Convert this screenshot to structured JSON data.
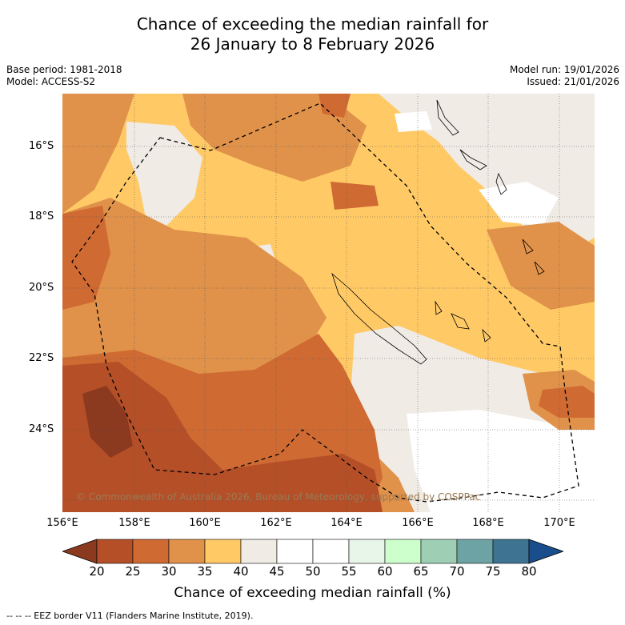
{
  "title": {
    "line1": "Chance of exceeding the median rainfall for",
    "line2": "26 January to 8 February 2026"
  },
  "meta": {
    "base_period": "Base period: 1981-2018",
    "model": "Model: ACCESS-S2",
    "model_run": "Model run: 19/01/2026",
    "issued": "Issued: 21/01/2026"
  },
  "map": {
    "lat_labels": [
      "16°S",
      "18°S",
      "20°S",
      "22°S",
      "24°S"
    ],
    "lon_labels": [
      "156°E",
      "158°E",
      "160°E",
      "162°E",
      "164°E",
      "166°E",
      "168°E",
      "170°E"
    ],
    "copyright": "© Commonwealth of Australia 2026, Bureau of Meteorology, supported by COSPPac"
  },
  "colorbar": {
    "ticks": [
      "20",
      "25",
      "30",
      "35",
      "40",
      "45",
      "50",
      "55",
      "60",
      "65",
      "70",
      "75",
      "80"
    ],
    "colors": [
      "#8b3a1f",
      "#b44f28",
      "#cf6a33",
      "#e0924a",
      "#ffc966",
      "#f0ebe5",
      "#ffffff",
      "#ffffff",
      "#e8f5e9",
      "#ccffcc",
      "#9ecfb4",
      "#6ea3a5",
      "#3e7492",
      "#1a4d8c"
    ],
    "label": "Chance of exceeding median rainfall (%)"
  },
  "footer": "--  --  -- EEZ border V11 (Flanders Marine Institute, 2019)."
}
